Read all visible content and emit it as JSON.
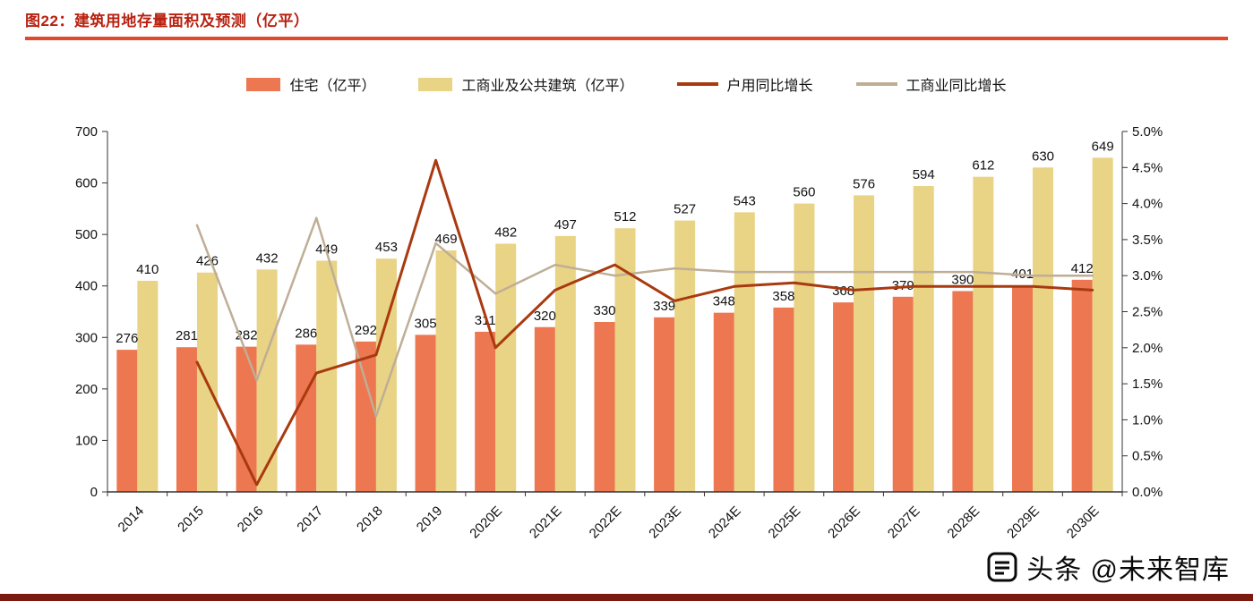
{
  "page": {
    "title": "图22：建筑用地存量面积及预测（亿平）",
    "watermark": "头条 @未来智库"
  },
  "colors": {
    "title_red": "#b82110",
    "rule_red": "#e2492c",
    "bar_residential": "#ec7750",
    "bar_commercial": "#e9d385",
    "line_residential": "#a93a10",
    "line_commercial": "#bfae96",
    "footer_bar": "#7a1a10",
    "axis": "#333333",
    "label": "#111111"
  },
  "chart_data": {
    "type": "bar+line",
    "title": "建筑用地存量面积及预测（亿平）",
    "grid": false,
    "legend_position": "top",
    "categories": [
      "2014",
      "2015",
      "2016",
      "2017",
      "2018",
      "2019",
      "2020E",
      "2021E",
      "2022E",
      "2023E",
      "2024E",
      "2025E",
      "2026E",
      "2027E",
      "2028E",
      "2029E",
      "2030E"
    ],
    "bar_series": [
      {
        "name": "住宅（亿平）",
        "color_key": "bar_residential",
        "values": [
          276,
          281,
          282,
          286,
          292,
          305,
          311,
          320,
          330,
          339,
          348,
          358,
          368,
          379,
          390,
          401,
          412
        ]
      },
      {
        "name": "工商业及公共建筑（亿平）",
        "color_key": "bar_commercial",
        "values": [
          410,
          426,
          432,
          449,
          453,
          469,
          482,
          497,
          512,
          527,
          543,
          560,
          576,
          594,
          612,
          630,
          649
        ]
      }
    ],
    "line_series": [
      {
        "name": "户用同比增长",
        "color_key": "line_residential",
        "axis": "right",
        "values": [
          null,
          1.8,
          0.1,
          1.65,
          1.9,
          4.6,
          2.0,
          2.8,
          3.15,
          2.65,
          2.85,
          2.9,
          2.8,
          2.85,
          2.85,
          2.85,
          2.8
        ]
      },
      {
        "name": "工商业同比增长",
        "color_key": "line_commercial",
        "axis": "right",
        "values": [
          null,
          3.7,
          1.55,
          3.8,
          1.05,
          3.45,
          2.75,
          3.15,
          3.0,
          3.1,
          3.05,
          3.05,
          3.05,
          3.05,
          3.05,
          3.0,
          3.0
        ]
      }
    ],
    "left_axis": {
      "min": 0,
      "max": 700,
      "step": 100,
      "ticks": [
        "0",
        "100",
        "200",
        "300",
        "400",
        "500",
        "600",
        "700"
      ]
    },
    "right_axis": {
      "min": 0,
      "max": 5,
      "step": 0.5,
      "ticks": [
        "0.0%",
        "0.5%",
        "1.0%",
        "1.5%",
        "2.0%",
        "2.5%",
        "3.0%",
        "3.5%",
        "4.0%",
        "4.5%",
        "5.0%"
      ]
    }
  }
}
